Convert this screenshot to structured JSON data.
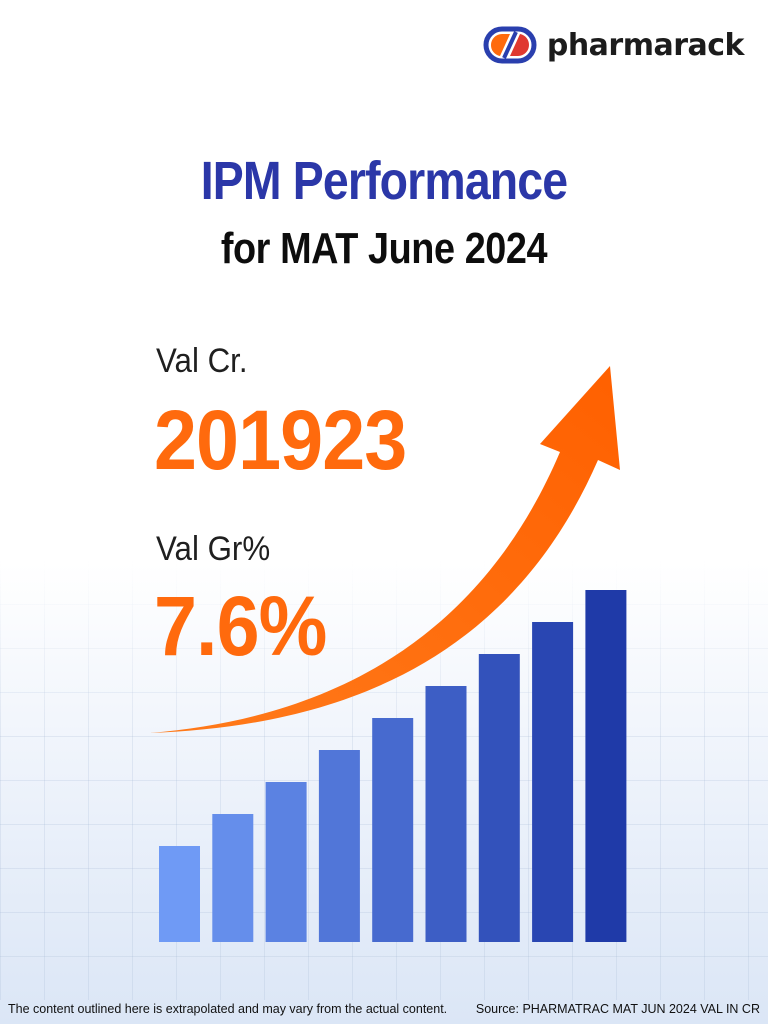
{
  "brand": {
    "name": "pharmarack",
    "colors": {
      "ring_blue": "#2a3fae",
      "ring_red": "#e0382f",
      "fill_orange": "#ff6a0d"
    }
  },
  "header": {
    "title": "IPM Performance",
    "subtitle": "for MAT June 2024"
  },
  "metrics": {
    "value_label": "Val Cr.",
    "value": "201923",
    "growth_label": "Val Gr%",
    "growth": "7.6%"
  },
  "footer": {
    "disclaimer": "The content outlined here is extrapolated and may vary from the actual content.",
    "source": "Source: PHARMATRAC MAT JUN 2024 VAL IN CR"
  },
  "colors": {
    "title": "#2b37a8",
    "accent_orange": "#ff6a0d",
    "bar_light": "#6f9af5",
    "bar_dark": "#1f3aa8"
  },
  "chart_data": {
    "type": "bar",
    "values": [
      1,
      2,
      3,
      4,
      5,
      6,
      7,
      8,
      9
    ],
    "trend_arrow": true
  }
}
